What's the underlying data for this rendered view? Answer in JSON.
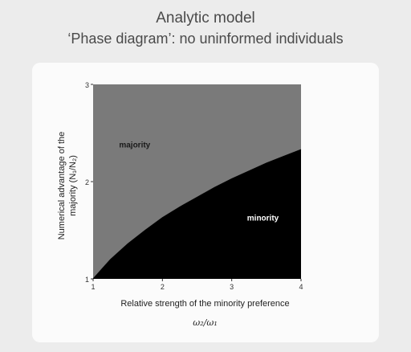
{
  "header": {
    "title": "Analytic model",
    "subtitle": "‘Phase diagram’: no uninformed individuals"
  },
  "chart_data": {
    "type": "area",
    "xlabel": "Relative strength of the minority preference",
    "xlabel_symbol": "ω₂/ω₁",
    "ylabel_line1": "Numerical advantage of the",
    "ylabel_line2": "majority (N₁/N₂)",
    "xlim": [
      1,
      4
    ],
    "ylim": [
      1,
      3
    ],
    "xticks": [
      "1",
      "2",
      "3",
      "4"
    ],
    "yticks": [
      "1",
      "2",
      "3"
    ],
    "boundary": {
      "x": [
        1.0,
        1.25,
        1.5,
        1.75,
        2.0,
        2.25,
        2.5,
        2.75,
        3.0,
        3.25,
        3.5,
        3.75,
        4.0
      ],
      "y": [
        1.0,
        1.2,
        1.36,
        1.5,
        1.63,
        1.74,
        1.84,
        1.94,
        2.03,
        2.11,
        2.19,
        2.26,
        2.33
      ]
    },
    "regions": [
      {
        "label": "majority",
        "color": "#7a7a7a",
        "x": 1.6,
        "y": 2.35
      },
      {
        "label": "minority",
        "color": "#000000",
        "x": 3.45,
        "y": 1.6
      }
    ]
  }
}
